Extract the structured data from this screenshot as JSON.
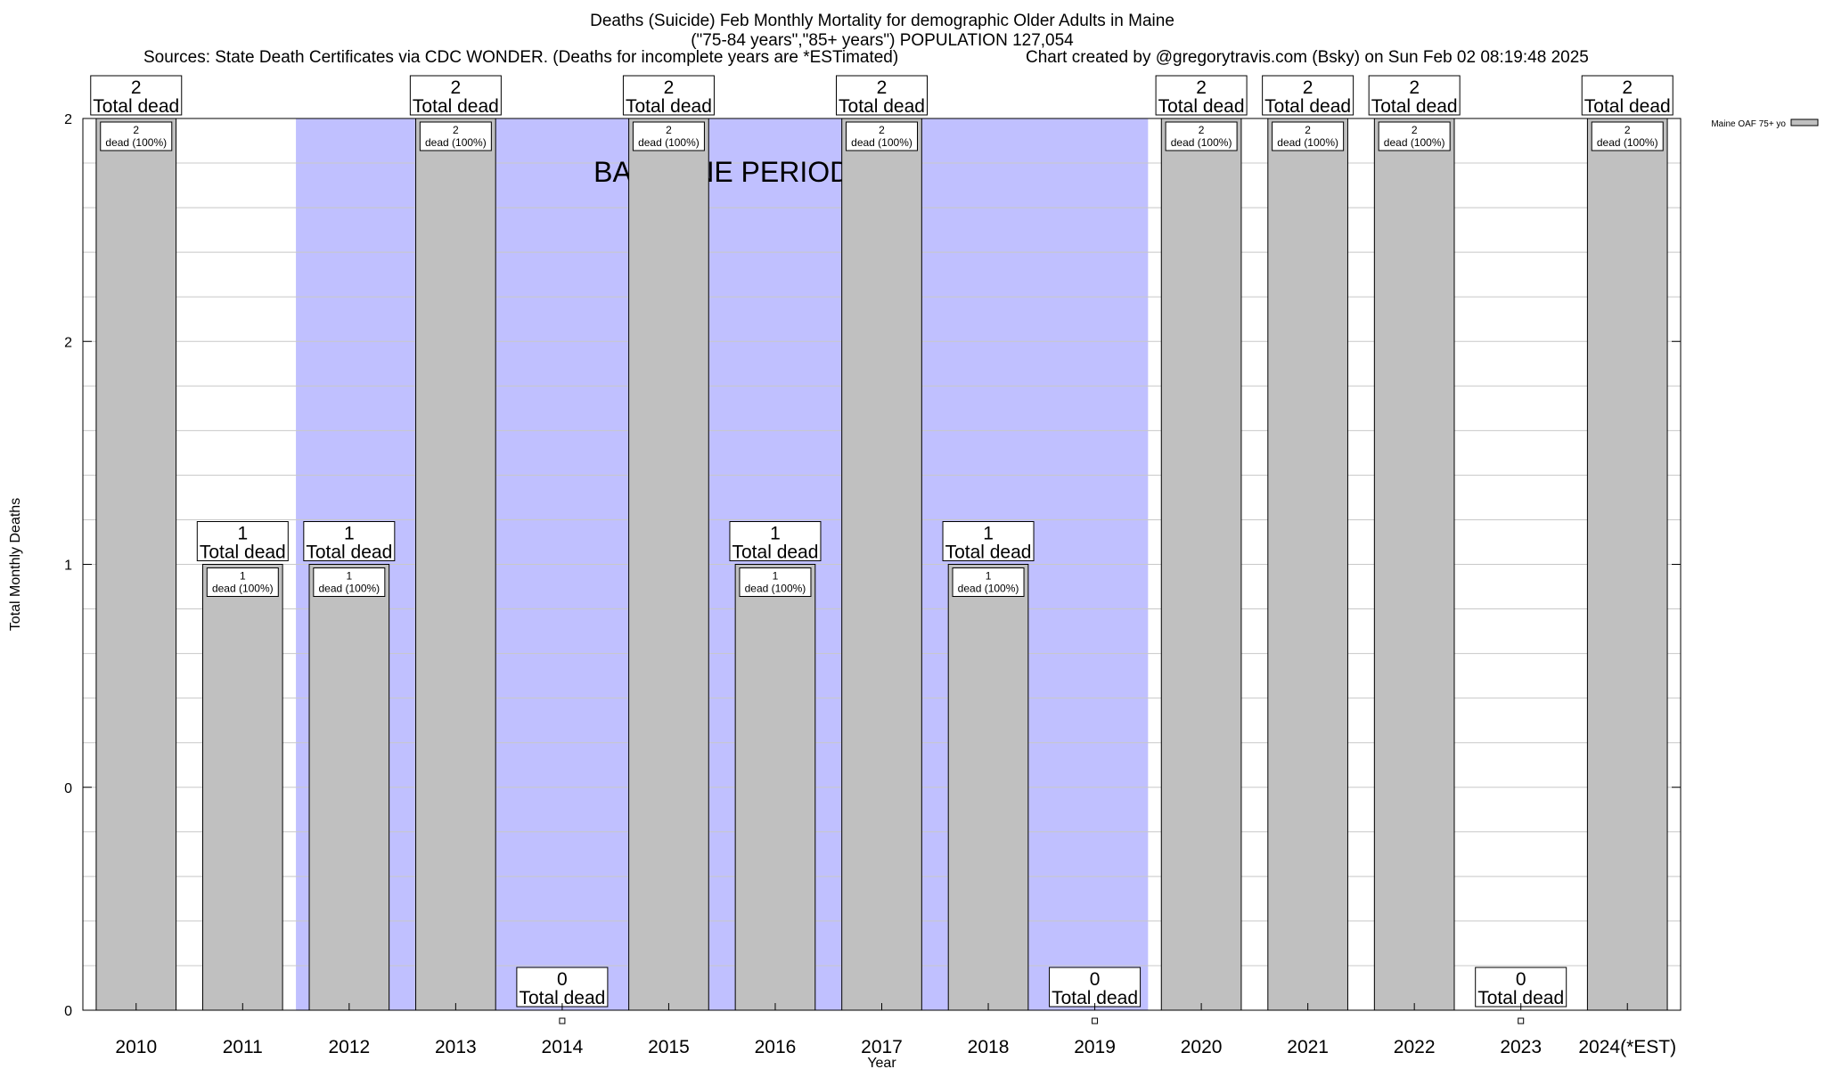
{
  "chart_data": {
    "type": "bar",
    "title": "Deaths (Suicide) Feb Monthly Mortality for demographic Older Adults in Maine",
    "subtitle": "(\"75-84 years\",\"85+ years\") POPULATION 127,054",
    "sources": "Sources: State Death Certificates via CDC WONDER. (Deaths for incomplete years are *ESTimated)",
    "credit": "Chart created by @gregorytravis.com (Bsky) on Sun Feb 02 08:19:48 2025",
    "xlabel": "Year",
    "ylabel": "Total Monthly Deaths",
    "categories": [
      "2010",
      "2011",
      "2012",
      "2013",
      "2014",
      "2015",
      "2016",
      "2017",
      "2018",
      "2019",
      "2020",
      "2021",
      "2022",
      "2023",
      "2024(*EST)"
    ],
    "series": [
      {
        "name": "Maine OAF 75+ yo",
        "values": [
          2,
          1,
          1,
          2,
          0,
          2,
          1,
          2,
          1,
          0,
          2,
          2,
          2,
          0,
          2
        ]
      }
    ],
    "total_labels": [
      "2\nTotal dead",
      "1\nTotal dead",
      "1\nTotal dead",
      "2\nTotal dead",
      "0\nTotal dead",
      "2\nTotal dead",
      "1\nTotal dead",
      "2\nTotal dead",
      "1\nTotal dead",
      "0\nTotal dead",
      "2\nTotal dead",
      "2\nTotal dead",
      "2\nTotal dead",
      "0\nTotal dead",
      "2\nTotal dead"
    ],
    "bar_labels": [
      "2\ndead (100%)",
      "1\ndead (100%)",
      "1\ndead (100%)",
      "2\ndead (100%)",
      "",
      "2\ndead (100%)",
      "1\ndead (100%)",
      "2\ndead (100%)",
      "1\ndead (100%)",
      "",
      "2\ndead (100%)",
      "2\ndead (100%)",
      "2\ndead (100%)",
      "",
      "2\ndead (100%)"
    ],
    "yticks": [
      {
        "label": "0",
        "value": 0
      },
      {
        "label": "0",
        "value": 0.5
      },
      {
        "label": "1",
        "value": 1
      },
      {
        "label": "2",
        "value": 1.5
      },
      {
        "label": "2",
        "value": 2
      }
    ],
    "ylim": [
      0,
      2
    ],
    "baseline_period": {
      "label": "BASELINE PERIOD",
      "from": "2012",
      "to": "2019"
    },
    "grid": true,
    "legend_position": "top-right",
    "colors": {
      "bar": "#c0c0c0",
      "baseline": "#c0c0ff",
      "grid": "#c8c8c8"
    }
  }
}
